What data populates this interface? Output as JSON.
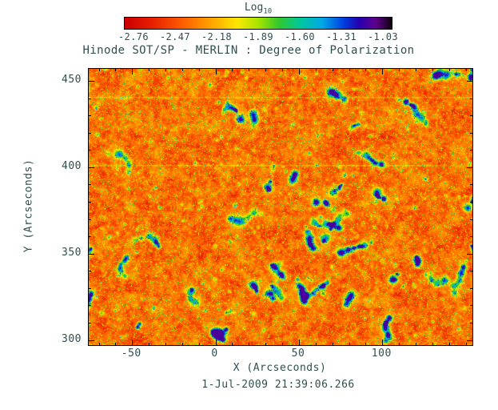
{
  "figure": {
    "background": "#ffffff",
    "text_color": "#2f4f4f",
    "frame_color": "#000000"
  },
  "chart_data": {
    "type": "heatmap",
    "title": "Hinode SOT/SP - MERLIN : Degree of Polarization",
    "timestamp": "1-Jul-2009 21:39:06.266",
    "colorbar": {
      "label": "Log",
      "label_sub": "10",
      "tick_labels": [
        "-2.76",
        "-2.47",
        "-2.18",
        "-1.89",
        "-1.60",
        "-1.31",
        "-1.03"
      ],
      "min": -2.76,
      "max": -1.03,
      "position": "top"
    },
    "x_axis": {
      "label": "X (Arcseconds)",
      "ticks": [
        -50,
        0,
        50,
        100
      ],
      "range": [
        -76,
        154
      ],
      "minor_step": 10
    },
    "y_axis": {
      "label": "Y (Arcseconds)",
      "ticks": [
        300,
        350,
        400,
        450
      ],
      "range": [
        297,
        457
      ],
      "minor_step": 10
    },
    "colormap": [
      {
        "at": 0.0,
        "color": "#cc0000"
      },
      {
        "at": 0.1,
        "color": "#e62000"
      },
      {
        "at": 0.22,
        "color": "#ff6000"
      },
      {
        "at": 0.33,
        "color": "#ffa800"
      },
      {
        "at": 0.42,
        "color": "#ffe800"
      },
      {
        "at": 0.5,
        "color": "#a8e600"
      },
      {
        "at": 0.58,
        "color": "#30c830"
      },
      {
        "at": 0.66,
        "color": "#00c8a0"
      },
      {
        "at": 0.74,
        "color": "#00a8e8"
      },
      {
        "at": 0.82,
        "color": "#0040e0"
      },
      {
        "at": 0.88,
        "color": "#2800b0"
      },
      {
        "at": 0.94,
        "color": "#600090"
      },
      {
        "at": 1.0,
        "color": "#100010"
      }
    ],
    "description": "Log10 degree-of-polarization map of the solar photosphere from Hinode SOT/SP (MERLIN inversion). Field is predominantly low polarization (red/orange granulation near -2.7) with scattered magnetic-network patches of enhanced polarization: yellow-green speckles (~ -2.2), cyan rims (~ -1.9) and dark blue cores (~ -1.3).",
    "texture": {
      "seed": 20090701,
      "base_level": 0.06,
      "octaves": [
        [
          0.13,
          6
        ],
        [
          0.09,
          17
        ],
        [
          0.1,
          3
        ]
      ],
      "speckle_amp": 0.38,
      "speckle_pow": 8,
      "blob_chains": 42,
      "small_blobs": 240,
      "seam_rows": [
        35,
        120
      ],
      "max_t": 0.92
    }
  }
}
